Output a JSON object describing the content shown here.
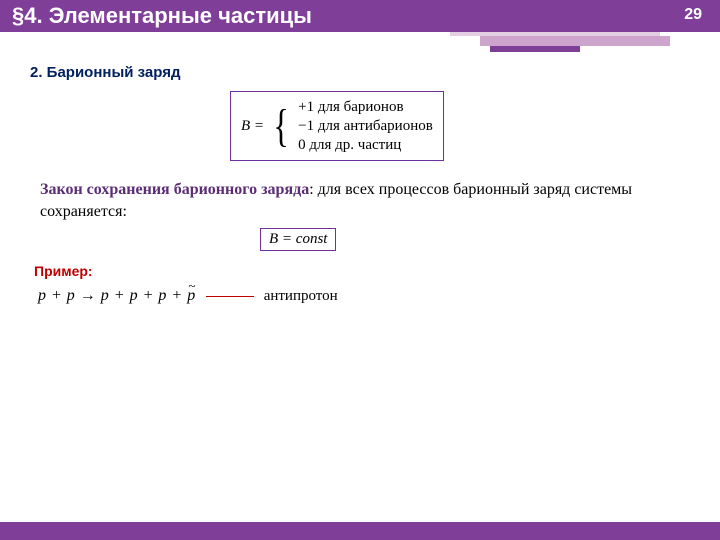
{
  "colors": {
    "accent": "#7f3e98",
    "accent_dark": "#7030a0",
    "deco_light": "#e4cee3",
    "deco_mid": "#cda4cc",
    "subheading": "#002060",
    "example_label": "#c00000",
    "dash": "#c00000",
    "law_term": "#5b2d75"
  },
  "header": {
    "title": "§4. Элементарные частицы",
    "page_number": "29"
  },
  "sections": {
    "subheading": "2. Барионный заряд",
    "formula": {
      "lhs": "B =",
      "cases": [
        "+1 для барионов",
        "−1 для антибарионов",
        "0 для др. частиц"
      ]
    },
    "law": {
      "term": "Закон сохранения барионного заряда",
      "text": ": для всех процессов барионный заряд системы сохраняется:"
    },
    "const_expr": "B = const",
    "example": {
      "label": "Пример:",
      "reaction_lhs": "p + p",
      "reaction_arrow": "→",
      "reaction_rhs_prefix": "p + p + p + ",
      "annotation": "антипротон"
    }
  }
}
